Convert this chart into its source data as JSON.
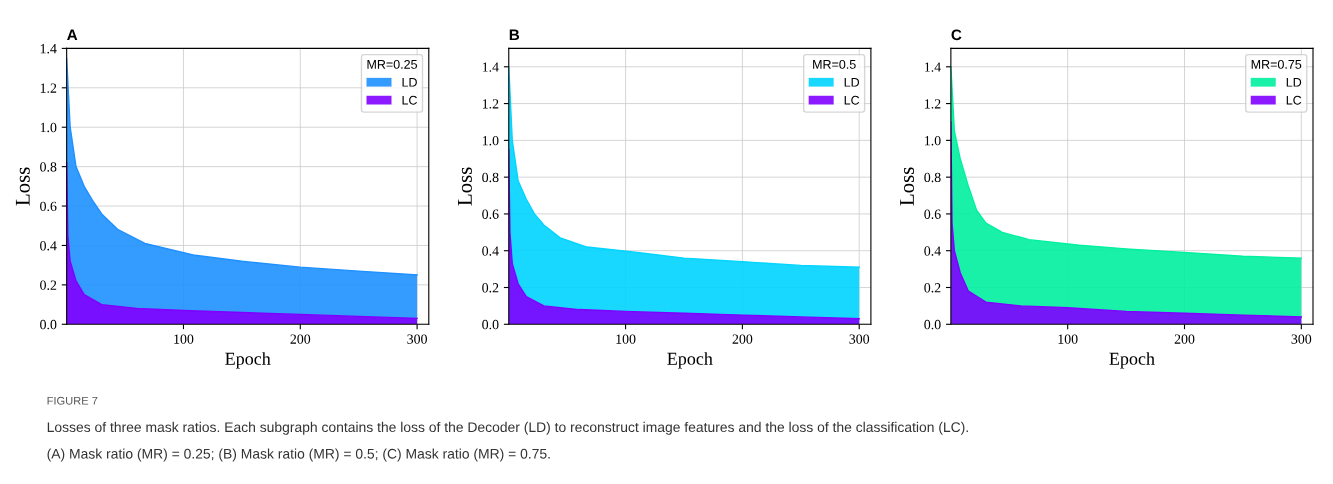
{
  "chart_data": [
    {
      "type": "area",
      "title": "A",
      "xlabel": "Epoch",
      "ylabel": "Loss",
      "legend_title": "MR=0.25",
      "xlim": [
        0,
        310
      ],
      "xticks": [
        100,
        200,
        300
      ],
      "ylim": [
        0,
        1.4
      ],
      "yticks": [
        {
          "value": 0,
          "label": "0.0"
        },
        {
          "value": 0.2,
          "label": "0.2"
        },
        {
          "value": 0.4,
          "label": "0.4"
        },
        {
          "value": 0.6,
          "label": "0.6"
        },
        {
          "value": 0.8,
          "label": "0.8"
        },
        {
          "value": 1.0,
          "label": "1.0"
        },
        {
          "value": 1.2,
          "label": "1.2"
        },
        {
          "value": 1.4,
          "label": "1.4"
        }
      ],
      "grid": true,
      "legend": "top right",
      "series": [
        {
          "name": "LD",
          "color": "#1e90ff",
          "x": [
            0,
            3,
            8,
            15,
            22,
            30,
            44,
            67,
            110,
            150,
            200,
            250,
            300
          ],
          "values": [
            1.35,
            1.0,
            0.8,
            0.7,
            0.63,
            0.56,
            0.48,
            0.41,
            0.35,
            0.32,
            0.29,
            0.27,
            0.25
          ]
        },
        {
          "name": "LC",
          "color": "#7f00ff",
          "x": [
            0,
            1,
            3,
            8,
            15,
            30,
            60,
            100,
            150,
            200,
            250,
            300
          ],
          "values": [
            0.82,
            0.45,
            0.32,
            0.22,
            0.15,
            0.1,
            0.08,
            0.07,
            0.06,
            0.05,
            0.04,
            0.03
          ]
        }
      ],
      "annotations": [
        "FIGURE 7",
        "Losses of three mask ratios. Each subgraph contains the loss of the Decoder (LD) to reconstruct image features and the loss of the classification (LC).",
        "(A) Mask ratio (MR) = 0.25; (B) Mask ratio (MR) = 0.5; (C) Mask ratio (MR) = 0.75."
      ]
    },
    {
      "type": "area",
      "title": "B",
      "xlabel": "Epoch",
      "ylabel": "Loss",
      "legend_title": "MR=0.5",
      "xlim": [
        0,
        310
      ],
      "xticks": [
        100,
        200,
        300
      ],
      "ylim": [
        0,
        1.5
      ],
      "yticks": [
        {
          "value": 0,
          "label": "0.0"
        },
        {
          "value": 0.2,
          "label": "0.2"
        },
        {
          "value": 0.4,
          "label": "0.4"
        },
        {
          "value": 0.6,
          "label": "0.6"
        },
        {
          "value": 0.8,
          "label": "0.8"
        },
        {
          "value": 1.0,
          "label": "1.0"
        },
        {
          "value": 1.2,
          "label": "1.2"
        },
        {
          "value": 1.4,
          "label": "1.4"
        }
      ],
      "grid": true,
      "legend": "top right",
      "series": [
        {
          "name": "LD",
          "color": "#00d4ff",
          "x": [
            0,
            3,
            8,
            15,
            22,
            30,
            44,
            67,
            110,
            150,
            200,
            250,
            300
          ],
          "values": [
            1.4,
            1.0,
            0.78,
            0.68,
            0.6,
            0.54,
            0.47,
            0.42,
            0.39,
            0.36,
            0.34,
            0.32,
            0.31
          ]
        },
        {
          "name": "LC",
          "color": "#7f00ff",
          "x": [
            0,
            1,
            3,
            8,
            15,
            30,
            60,
            100,
            150,
            200,
            250,
            300
          ],
          "values": [
            0.95,
            0.5,
            0.33,
            0.22,
            0.15,
            0.1,
            0.08,
            0.07,
            0.06,
            0.05,
            0.04,
            0.03
          ]
        }
      ]
    },
    {
      "type": "area",
      "title": "C",
      "xlabel": "Epoch",
      "ylabel": "Loss",
      "legend_title": "MR=0.75",
      "xlim": [
        0,
        310
      ],
      "xticks": [
        100,
        200,
        300
      ],
      "ylim": [
        0,
        1.5
      ],
      "yticks": [
        {
          "value": 0,
          "label": "0.0"
        },
        {
          "value": 0.2,
          "label": "0.2"
        },
        {
          "value": 0.4,
          "label": "0.4"
        },
        {
          "value": 0.6,
          "label": "0.6"
        },
        {
          "value": 0.8,
          "label": "0.8"
        },
        {
          "value": 1.0,
          "label": "1.0"
        },
        {
          "value": 1.2,
          "label": "1.2"
        },
        {
          "value": 1.4,
          "label": "1.4"
        }
      ],
      "grid": true,
      "legend": "top right",
      "series": [
        {
          "name": "LD",
          "color": "#00f0a0",
          "x": [
            0,
            3,
            8,
            15,
            22,
            30,
            44,
            67,
            110,
            150,
            200,
            250,
            300
          ],
          "values": [
            1.4,
            1.05,
            0.9,
            0.75,
            0.62,
            0.55,
            0.5,
            0.46,
            0.43,
            0.41,
            0.39,
            0.37,
            0.36
          ]
        },
        {
          "name": "LC",
          "color": "#7f00ff",
          "x": [
            0,
            1,
            3,
            8,
            15,
            30,
            60,
            100,
            150,
            200,
            250,
            300
          ],
          "values": [
            1.1,
            0.55,
            0.4,
            0.28,
            0.18,
            0.12,
            0.1,
            0.09,
            0.07,
            0.06,
            0.05,
            0.04
          ]
        }
      ]
    }
  ]
}
